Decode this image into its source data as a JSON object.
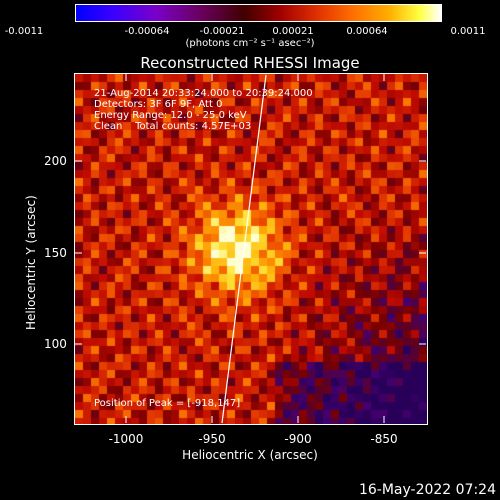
{
  "colorbar": {
    "labels": [
      "-0.0011",
      "-0.00064",
      "-0.00021",
      "0.00021",
      "0.00064",
      "0.0011"
    ],
    "units": "(photons cm⁻² s⁻¹ asec⁻²)"
  },
  "title": "Reconstructed RHESSI Image",
  "info": {
    "time_range": "21-Aug-2014 20:33:24.000 to 20:39:24.000",
    "detectors": "Detectors: 3F 6F 9F, Att 0",
    "energy": "Energy Range: 12.0 - 25.0 keV",
    "clean": "Clean    Total counts: 4.57E+03",
    "peak": "Position of Peak = [-918,147]"
  },
  "axes": {
    "xlabel": "Heliocentric X (arcsec)",
    "ylabel": "Heliocentric Y (arcsec)",
    "xticks": [
      "-1000",
      "-950",
      "-900",
      "-850"
    ],
    "yticks": [
      "200",
      "150",
      "100"
    ]
  },
  "footer": "16-May-2022 07:24",
  "colors": {
    "background": "#000000",
    "text": "#ffffff"
  }
}
